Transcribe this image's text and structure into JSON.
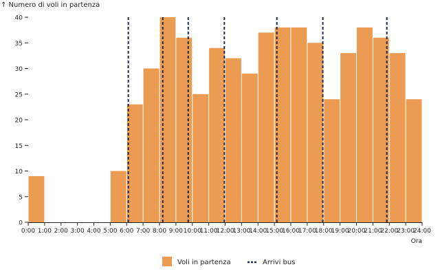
{
  "chart_data": {
    "type": "bar",
    "ylabel": "↑ Numero di voli in partenza",
    "xlabel": "Ora",
    "ylim": [
      0,
      40
    ],
    "yticks": [
      0,
      5,
      10,
      15,
      20,
      25,
      30,
      35,
      40
    ],
    "xlim": [
      0,
      24
    ],
    "xticks": [
      "0:00",
      "1:00",
      "2:00",
      "3:00",
      "4:00",
      "5:00",
      "6:00",
      "7:00",
      "8:00",
      "9:00",
      "10:00",
      "11:00",
      "12:00",
      "13:00",
      "14:00",
      "15:00",
      "16:00",
      "17:00",
      "18:00",
      "19:00",
      "20:00",
      "21:00",
      "22:00",
      "23:00",
      "24:00"
    ],
    "series": [
      {
        "name": "Voli in partenza",
        "type": "bar",
        "color": "#ec9b52",
        "bins_hour_start": [
          0,
          1,
          2,
          3,
          4,
          5,
          6,
          7,
          8,
          9,
          10,
          11,
          12,
          13,
          14,
          15,
          16,
          17,
          18,
          19,
          20,
          21,
          22,
          23
        ],
        "values": [
          9,
          0,
          0,
          0,
          0,
          10,
          23,
          30,
          40,
          36,
          25,
          34,
          32,
          29,
          37,
          38,
          38,
          35,
          24,
          33,
          38,
          36,
          33,
          24
        ]
      },
      {
        "name": "Arrivi bus",
        "type": "vline",
        "color": "#1a2a4a",
        "style": "dashed",
        "x_hours": [
          6.1,
          8.2,
          9.75,
          11.95,
          15.15,
          17.95,
          21.85
        ]
      }
    ],
    "legend": {
      "placement": "bottom-center",
      "items": [
        {
          "label": "Voli in partenza",
          "symbol": "square",
          "color": "#ec9b52"
        },
        {
          "label": "Arrivi bus",
          "symbol": "dashed-line",
          "color": "#1a2a4a"
        }
      ]
    }
  }
}
